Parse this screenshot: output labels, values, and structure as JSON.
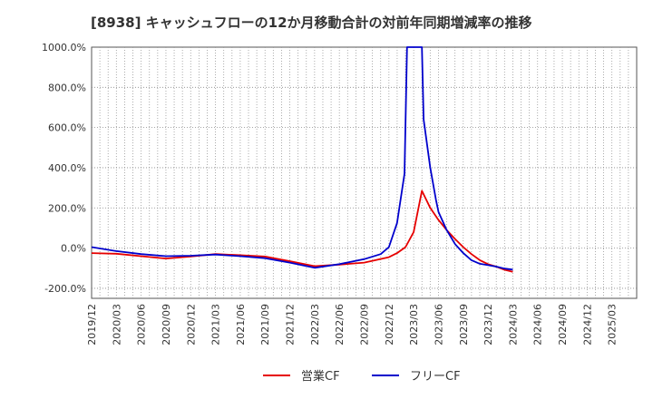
{
  "chart_data": {
    "type": "line",
    "title": "[8938]  キャッシュフローの12か月移動合計の対前年同期増減率の推移",
    "xlabel": "",
    "ylabel": "",
    "ylim": [
      -250,
      1000
    ],
    "yticks": [
      {
        "value": -200,
        "label": "-200.0%"
      },
      {
        "value": 0,
        "label": "0.0%"
      },
      {
        "value": 200,
        "label": "200.0%"
      },
      {
        "value": 400,
        "label": "400.0%"
      },
      {
        "value": 600,
        "label": "600.0%"
      },
      {
        "value": 800,
        "label": "800.0%"
      },
      {
        "value": 1000,
        "label": "1000.0%"
      }
    ],
    "x_range": [
      0,
      22
    ],
    "x_ticks": [
      "2019/12",
      "2020/03",
      "2020/06",
      "2020/09",
      "2020/12",
      "2021/03",
      "2021/06",
      "2021/09",
      "2021/12",
      "2022/03",
      "2022/06",
      "2022/09",
      "2022/12",
      "2023/03",
      "2023/06",
      "2023/09",
      "2023/12",
      "2024/03",
      "2024/06",
      "2024/09",
      "2024/12",
      "2025/03"
    ],
    "series": [
      {
        "name": "営業CF",
        "color": "#e60000",
        "points": [
          [
            0,
            -25
          ],
          [
            1,
            -28
          ],
          [
            2,
            -40
          ],
          [
            3,
            -52
          ],
          [
            4,
            -42
          ],
          [
            5,
            -30
          ],
          [
            6,
            -35
          ],
          [
            7,
            -42
          ],
          [
            8,
            -65
          ],
          [
            9,
            -90
          ],
          [
            10,
            -82
          ],
          [
            11,
            -72
          ],
          [
            12,
            -45
          ],
          [
            12.33,
            -25
          ],
          [
            12.67,
            5
          ],
          [
            13,
            80
          ],
          [
            13.33,
            285
          ],
          [
            13.67,
            200
          ],
          [
            14,
            140
          ],
          [
            14.33,
            90
          ],
          [
            14.67,
            45
          ],
          [
            15,
            5
          ],
          [
            15.33,
            -30
          ],
          [
            15.67,
            -60
          ],
          [
            16,
            -80
          ],
          [
            16.33,
            -92
          ],
          [
            16.67,
            -108
          ],
          [
            17,
            -118
          ]
        ]
      },
      {
        "name": "フリーCF",
        "color": "#0000cc",
        "points": [
          [
            0,
            5
          ],
          [
            1,
            -15
          ],
          [
            2,
            -30
          ],
          [
            3,
            -40
          ],
          [
            4,
            -38
          ],
          [
            5,
            -32
          ],
          [
            6,
            -40
          ],
          [
            7,
            -50
          ],
          [
            8,
            -72
          ],
          [
            9,
            -98
          ],
          [
            10,
            -80
          ],
          [
            11,
            -55
          ],
          [
            11.67,
            -30
          ],
          [
            12,
            5
          ],
          [
            12.33,
            125
          ],
          [
            12.63,
            370
          ],
          [
            12.73,
            1000
          ],
          [
            13.33,
            1000
          ],
          [
            13.4,
            640
          ],
          [
            13.67,
            400
          ],
          [
            13.9,
            240
          ],
          [
            14,
            180
          ],
          [
            14.33,
            90
          ],
          [
            14.67,
            20
          ],
          [
            15,
            -25
          ],
          [
            15.33,
            -60
          ],
          [
            15.67,
            -78
          ],
          [
            16,
            -85
          ],
          [
            16.33,
            -92
          ],
          [
            16.67,
            -102
          ],
          [
            17,
            -107
          ]
        ]
      }
    ],
    "legend": {
      "position": "bottom-center",
      "entries": [
        "営業CF",
        "フリーCF"
      ]
    }
  }
}
